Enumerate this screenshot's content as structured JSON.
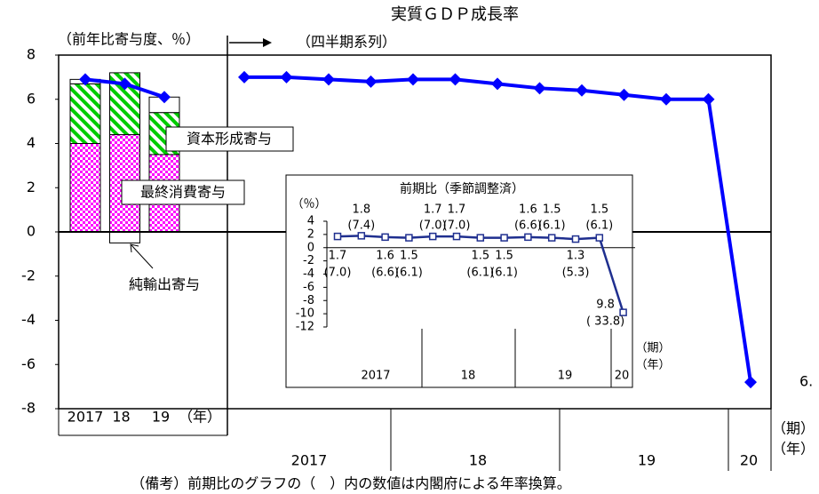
{
  "title": "実質ＧＤＰ成長率",
  "footnote": "（備考）前期比のグラフの（　）内の数値は内閣府による年率換算。",
  "chart_data": [
    {
      "type": "stacked_bar",
      "y_label": "（前年比寄与度、％）",
      "x_unit": "（年）",
      "categories": [
        "2017",
        "18",
        "19"
      ],
      "series": [
        {
          "name": "最終消費寄与",
          "color": "#ff00ff",
          "values": [
            4.0,
            4.4,
            3.5
          ]
        },
        {
          "name": "資本形成寄与",
          "color": "#00cc00",
          "values": [
            2.7,
            2.8,
            1.9
          ]
        },
        {
          "name": "純輸出寄与",
          "color": "#ffffff",
          "values": [
            0.2,
            -0.5,
            0.7
          ]
        }
      ],
      "line": {
        "color": "#0000ff",
        "values": [
          6.9,
          6.7,
          6.1
        ]
      },
      "ylim": [
        -8,
        8
      ],
      "yticks": [
        -8,
        -6,
        -4,
        -2,
        0,
        2,
        4,
        6,
        8
      ]
    },
    {
      "type": "line",
      "label": "（四半期系列）",
      "period_unit": "（期）",
      "year_unit": "（年）",
      "categories": [
        null,
        null,
        null,
        null,
        null,
        null,
        null,
        null,
        null,
        null,
        null,
        null,
        null
      ],
      "year_labels": [
        "2017",
        "18",
        "19",
        "20"
      ],
      "color": "#0000ff",
      "values": [
        7.0,
        7.0,
        6.9,
        6.8,
        6.9,
        6.9,
        6.7,
        6.5,
        6.4,
        6.2,
        6.0,
        6.0,
        -6.8
      ],
      "annotation": "6.",
      "ylim": [
        -8,
        8
      ]
    },
    {
      "type": "line",
      "title": "前期比（季節調整済）",
      "y_label": "（％）",
      "period_unit": "（期）",
      "year_unit": "（年）",
      "categories": [
        null,
        null,
        null,
        null,
        null,
        null,
        null,
        null,
        null,
        null,
        null,
        null,
        null
      ],
      "year_labels": [
        "2017",
        "18",
        "19",
        "20"
      ],
      "color": "#1f2f8f",
      "values": [
        1.7,
        1.8,
        1.6,
        1.5,
        1.7,
        1.7,
        1.5,
        1.5,
        1.6,
        1.5,
        1.3,
        1.5,
        -9.8
      ],
      "value_labels": [
        "1.7",
        "1.8",
        "1.6",
        "1.5",
        "1.7",
        "1.7",
        "1.5",
        "1.5",
        "1.6",
        "1.5",
        "1.3",
        "1.5",
        "9.8"
      ],
      "annualized": [
        7.0,
        7.4,
        6.6,
        6.1,
        7.0,
        7.0,
        6.1,
        6.1,
        6.6,
        6.1,
        5.3,
        6.1,
        -33.8
      ],
      "annualized_labels": [
        "(7.0)",
        "(7.4)",
        "(6.6)",
        "(6.1)",
        "(7.0)",
        "(7.0)",
        "(6.1)",
        "(6.1)",
        "(6.6)",
        "(6.1)",
        "(5.3)",
        "(6.1)",
        "( 33.8)"
      ],
      "ylim": [
        -12,
        4
      ],
      "yticks": [
        -12,
        -10,
        -8,
        -6,
        -4,
        -2,
        0,
        2,
        4
      ]
    }
  ]
}
